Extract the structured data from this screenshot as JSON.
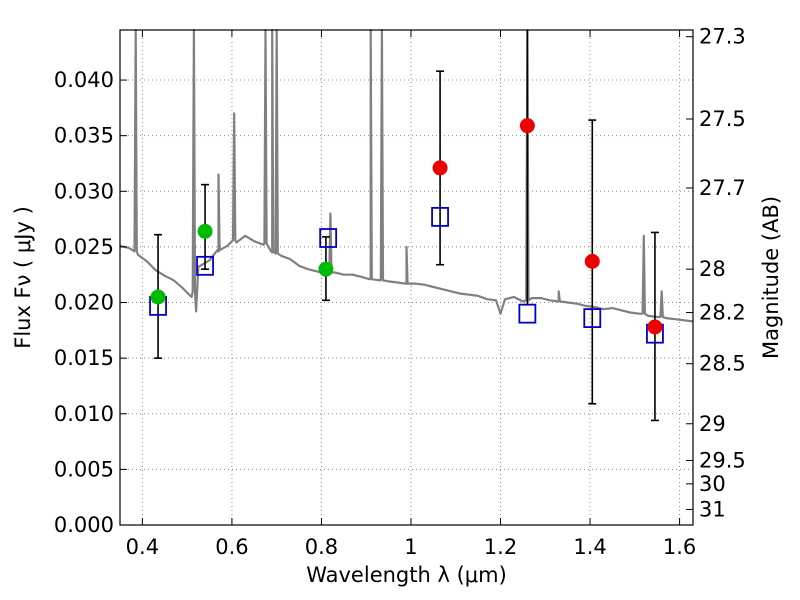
{
  "chart_data": {
    "type": "scatter",
    "xlabel": "Wavelength  λ (μm)",
    "ylabel": "Flux  Fν  ( μJy )",
    "y2label": "Magnitude (AB)",
    "xlim": [
      0.35,
      1.63
    ],
    "ylim": [
      0.0,
      0.0445
    ],
    "grid": true,
    "x_ticks": [
      0.4,
      0.6,
      0.8,
      1.0,
      1.2,
      1.4,
      1.6
    ],
    "x_tick_labels": [
      "0.4",
      "0.6",
      "0.8",
      "1",
      "1.2",
      "1.4",
      "1.6"
    ],
    "y_ticks": [
      0.0,
      0.005,
      0.01,
      0.015,
      0.02,
      0.025,
      0.03,
      0.035,
      0.04
    ],
    "y_tick_labels": [
      "0.000",
      "0.005",
      "0.010",
      "0.015",
      "0.020",
      "0.025",
      "0.030",
      "0.035",
      "0.040"
    ],
    "y2_ticks": [
      {
        "label": "27.3",
        "flux": 0.0439
      },
      {
        "label": "27.5",
        "flux": 0.0365
      },
      {
        "label": "27.7",
        "flux": 0.0303
      },
      {
        "label": "28",
        "flux": 0.023
      },
      {
        "label": "28.2",
        "flux": 0.0191
      },
      {
        "label": "28.5",
        "flux": 0.0145
      },
      {
        "label": "29",
        "flux": 0.0091
      },
      {
        "label": "29.5",
        "flux": 0.0058
      },
      {
        "label": "30",
        "flux": 0.0037
      },
      {
        "label": "31",
        "flux": 0.0014
      }
    ],
    "colors": {
      "spectrum": "#808080",
      "model": "#0000cc",
      "green_points": "#00bb00",
      "red_points": "#ee0000",
      "errorbar": "#000000",
      "grid": "#888888"
    },
    "spectrum_continuum": [
      [
        0.35,
        0.0251
      ],
      [
        0.37,
        0.0249
      ],
      [
        0.39,
        0.0243
      ],
      [
        0.41,
        0.0237
      ],
      [
        0.43,
        0.0229
      ],
      [
        0.45,
        0.0224
      ],
      [
        0.47,
        0.022
      ],
      [
        0.49,
        0.0213
      ],
      [
        0.51,
        0.0205
      ],
      [
        0.52,
        0.0192
      ],
      [
        0.525,
        0.0232
      ],
      [
        0.55,
        0.0238
      ],
      [
        0.57,
        0.0246
      ],
      [
        0.59,
        0.0251
      ],
      [
        0.61,
        0.0254
      ],
      [
        0.63,
        0.026
      ],
      [
        0.65,
        0.0255
      ],
      [
        0.67,
        0.0252
      ],
      [
        0.69,
        0.0245
      ],
      [
        0.71,
        0.0242
      ],
      [
        0.73,
        0.0239
      ],
      [
        0.75,
        0.0233
      ],
      [
        0.77,
        0.023
      ],
      [
        0.79,
        0.0228
      ],
      [
        0.81,
        0.0226
      ],
      [
        0.83,
        0.0227
      ],
      [
        0.85,
        0.0225
      ],
      [
        0.87,
        0.0225
      ],
      [
        0.89,
        0.0223
      ],
      [
        0.91,
        0.0221
      ],
      [
        0.93,
        0.022
      ],
      [
        0.95,
        0.0219
      ],
      [
        0.97,
        0.0218
      ],
      [
        0.99,
        0.0217
      ],
      [
        1.01,
        0.0217
      ],
      [
        1.03,
        0.0216
      ],
      [
        1.05,
        0.0214
      ],
      [
        1.07,
        0.0212
      ],
      [
        1.09,
        0.021
      ],
      [
        1.11,
        0.0208
      ],
      [
        1.13,
        0.0207
      ],
      [
        1.15,
        0.0206
      ],
      [
        1.17,
        0.0203
      ],
      [
        1.19,
        0.0202
      ],
      [
        1.2,
        0.019
      ],
      [
        1.21,
        0.0203
      ],
      [
        1.23,
        0.0205
      ],
      [
        1.25,
        0.0201
      ],
      [
        1.27,
        0.0204
      ],
      [
        1.29,
        0.0204
      ],
      [
        1.31,
        0.0202
      ],
      [
        1.33,
        0.0201
      ],
      [
        1.35,
        0.02
      ],
      [
        1.37,
        0.0199
      ],
      [
        1.39,
        0.0197
      ],
      [
        1.41,
        0.0196
      ],
      [
        1.43,
        0.0194
      ],
      [
        1.45,
        0.0195
      ],
      [
        1.47,
        0.0193
      ],
      [
        1.49,
        0.0191
      ],
      [
        1.51,
        0.019
      ],
      [
        1.53,
        0.0188
      ],
      [
        1.55,
        0.0187
      ],
      [
        1.57,
        0.0186
      ],
      [
        1.59,
        0.0185
      ],
      [
        1.61,
        0.0184
      ],
      [
        1.63,
        0.0183
      ]
    ],
    "spectrum_lines": [
      {
        "x": 0.385,
        "peak": 0.0445,
        "base": 0.0246
      },
      {
        "x": 0.515,
        "peak": 0.0445,
        "base": 0.021
      },
      {
        "x": 0.57,
        "peak": 0.0315,
        "base": 0.0247
      },
      {
        "x": 0.605,
        "peak": 0.037,
        "base": 0.0256
      },
      {
        "x": 0.675,
        "peak": 0.0445,
        "base": 0.0253
      },
      {
        "x": 0.69,
        "peak": 0.0445,
        "base": 0.0246
      },
      {
        "x": 0.7,
        "peak": 0.0445,
        "base": 0.0244
      },
      {
        "x": 0.82,
        "peak": 0.028,
        "base": 0.0227
      },
      {
        "x": 0.91,
        "peak": 0.0445,
        "base": 0.0221
      },
      {
        "x": 0.935,
        "peak": 0.0445,
        "base": 0.022
      },
      {
        "x": 0.99,
        "peak": 0.025,
        "base": 0.0217
      },
      {
        "x": 1.26,
        "peak": 0.0445,
        "base": 0.0202
      },
      {
        "x": 1.33,
        "peak": 0.021,
        "base": 0.0201
      },
      {
        "x": 1.52,
        "peak": 0.026,
        "base": 0.019
      },
      {
        "x": 1.56,
        "peak": 0.021,
        "base": 0.0187
      }
    ],
    "model_points": [
      {
        "x": 0.435,
        "y": 0.0197
      },
      {
        "x": 0.54,
        "y": 0.0233
      },
      {
        "x": 0.815,
        "y": 0.0258
      },
      {
        "x": 1.065,
        "y": 0.0277
      },
      {
        "x": 1.26,
        "y": 0.019
      },
      {
        "x": 1.405,
        "y": 0.0186
      },
      {
        "x": 1.545,
        "y": 0.0172
      }
    ],
    "green_points": [
      {
        "x": 0.435,
        "y": 0.0205,
        "yerr_low": 0.015,
        "yerr_high": 0.0261
      },
      {
        "x": 0.54,
        "y": 0.0264,
        "yerr_low": 0.023,
        "yerr_high": 0.0306
      },
      {
        "x": 0.81,
        "y": 0.023,
        "yerr_low": 0.0202,
        "yerr_high": 0.0259
      }
    ],
    "red_points": [
      {
        "x": 1.065,
        "y": 0.0321,
        "yerr_low": 0.0234,
        "yerr_high": 0.0408
      },
      {
        "x": 1.26,
        "y": 0.0359,
        "yerr_low": 0.0198,
        "yerr_high": 0.0445
      },
      {
        "x": 1.405,
        "y": 0.0237,
        "yerr_low": 0.0109,
        "yerr_high": 0.0364
      },
      {
        "x": 1.545,
        "y": 0.0178,
        "yerr_low": 0.0094,
        "yerr_high": 0.0263
      }
    ]
  }
}
